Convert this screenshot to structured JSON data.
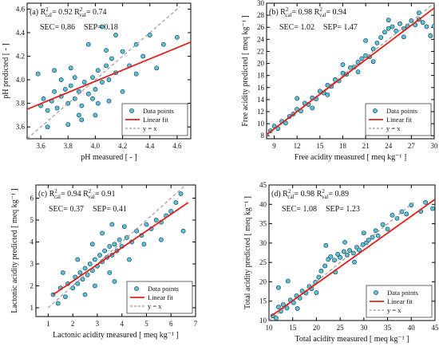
{
  "chart_data": [
    {
      "type": "scatter",
      "panel_label": "(a)",
      "xlabel": "pH measured [ - ]",
      "ylabel": "pH predicted [ - ]",
      "xlim": [
        3.5,
        4.7
      ],
      "ylim": [
        3.5,
        4.65
      ],
      "xticks": [
        "3.6",
        "3.8",
        "4.0",
        "4.2",
        "4.4",
        "4.6"
      ],
      "yticks": [
        "3.6",
        "3.8",
        "4.0",
        "4.2",
        "4.4",
        "4.6"
      ],
      "stats": {
        "r2_cal": "0.92",
        "r2_val": "0.74",
        "sec": "0.86",
        "sep": "0.18"
      },
      "fit_line": {
        "x": [
          3.5,
          4.7
        ],
        "y": [
          3.75,
          4.32
        ]
      },
      "identity_line": {
        "x": [
          3.5,
          4.62
        ],
        "y": [
          3.5,
          4.62
        ]
      },
      "points": [
        [
          3.6,
          3.78
        ],
        [
          3.62,
          3.84
        ],
        [
          3.65,
          3.74
        ],
        [
          3.68,
          3.82
        ],
        [
          3.7,
          3.9
        ],
        [
          3.72,
          3.76
        ],
        [
          3.75,
          3.86
        ],
        [
          3.78,
          3.92
        ],
        [
          3.8,
          3.8
        ],
        [
          3.82,
          3.95
        ],
        [
          3.85,
          3.84
        ],
        [
          3.88,
          3.9
        ],
        [
          3.9,
          3.78
        ],
        [
          3.92,
          3.98
        ],
        [
          3.95,
          3.88
        ],
        [
          3.98,
          4.02
        ],
        [
          4.0,
          3.92
        ],
        [
          4.02,
          4.08
        ],
        [
          4.05,
          3.98
        ],
        [
          4.08,
          4.12
        ],
        [
          4.1,
          4.0
        ],
        [
          4.12,
          4.18
        ],
        [
          4.15,
          4.06
        ],
        [
          4.2,
          4.24
        ],
        [
          4.25,
          4.12
        ],
        [
          4.3,
          4.3
        ],
        [
          4.35,
          4.2
        ],
        [
          4.4,
          4.38
        ],
        [
          4.5,
          4.3
        ],
        [
          4.6,
          4.36
        ],
        [
          3.58,
          4.05
        ],
        [
          3.7,
          4.08
        ],
        [
          3.82,
          4.1
        ],
        [
          3.95,
          4.3
        ],
        [
          4.05,
          4.45
        ],
        [
          4.15,
          4.38
        ],
        [
          3.65,
          3.6
        ],
        [
          3.8,
          3.62
        ],
        [
          3.9,
          3.66
        ],
        [
          4.0,
          3.7
        ],
        [
          4.1,
          3.82
        ],
        [
          4.2,
          3.9
        ],
        [
          4.3,
          4.05
        ],
        [
          4.45,
          4.1
        ],
        [
          3.75,
          4.0
        ],
        [
          3.85,
          4.02
        ],
        [
          3.88,
          3.7
        ],
        [
          3.98,
          3.84
        ],
        [
          4.02,
          3.8
        ],
        [
          4.08,
          4.25
        ]
      ]
    },
    {
      "type": "scatter",
      "panel_label": "(b)",
      "xlabel": "Free acidity measured [ meq kg⁻¹ ]",
      "ylabel": "Free acidity predicted [ meq kg⁻¹ ]",
      "xlim": [
        8,
        30
      ],
      "ylim": [
        7.5,
        30
      ],
      "xticks": [
        "9",
        "12",
        "15",
        "18",
        "21",
        "24",
        "27",
        "30"
      ],
      "yticks": [
        "8",
        "10",
        "12",
        "14",
        "16",
        "18",
        "20",
        "22",
        "24",
        "26",
        "28",
        "30"
      ],
      "stats": {
        "r2_cal": "0.98",
        "r2_val": "0.94",
        "sec": "1.02",
        "sep": "1.47"
      },
      "fit_line": {
        "x": [
          8,
          30
        ],
        "y": [
          8.2,
          29.2
        ]
      },
      "identity_line": {
        "x": [
          8,
          30
        ],
        "y": [
          8,
          30
        ]
      },
      "points": [
        [
          8.5,
          8.8
        ],
        [
          9,
          9.6
        ],
        [
          9.5,
          9.2
        ],
        [
          10,
          10.4
        ],
        [
          10.5,
          10.1
        ],
        [
          11,
          11.2
        ],
        [
          11.5,
          11.6
        ],
        [
          12,
          12.4
        ],
        [
          12.5,
          12.1
        ],
        [
          13,
          13.4
        ],
        [
          13.5,
          13.2
        ],
        [
          14,
          14.3
        ],
        [
          14.5,
          14.1
        ],
        [
          15,
          15.4
        ],
        [
          15.5,
          15.1
        ],
        [
          16,
          16.4
        ],
        [
          16.5,
          16.2
        ],
        [
          17,
          17.3
        ],
        [
          17.5,
          17.1
        ],
        [
          18,
          18.4
        ],
        [
          18.5,
          18.2
        ],
        [
          19,
          19.3
        ],
        [
          19.5,
          19.4
        ],
        [
          20,
          20.2
        ],
        [
          20.5,
          20.8
        ],
        [
          21,
          21.3
        ],
        [
          21.5,
          21.1
        ],
        [
          22,
          22.4
        ],
        [
          22.5,
          23.4
        ],
        [
          23,
          24.3
        ],
        [
          23.5,
          25.2
        ],
        [
          24,
          25.8
        ],
        [
          24.5,
          26.1
        ],
        [
          25,
          25.4
        ],
        [
          25.5,
          26.6
        ],
        [
          26,
          25.8
        ],
        [
          26.5,
          26.2
        ],
        [
          27,
          27.1
        ],
        [
          27.5,
          26.4
        ],
        [
          28,
          27.3
        ],
        [
          28.5,
          26.8
        ],
        [
          29,
          26.1
        ],
        [
          29.5,
          24.6
        ],
        [
          12,
          14.2
        ],
        [
          14,
          12.6
        ],
        [
          16,
          14.8
        ],
        [
          18,
          19.8
        ],
        [
          20,
          18.6
        ],
        [
          22,
          20.3
        ],
        [
          24,
          27.2
        ],
        [
          26,
          24.4
        ],
        [
          28,
          28.4
        ],
        [
          30,
          26.2
        ],
        [
          21,
          23.8
        ]
      ]
    },
    {
      "type": "scatter",
      "panel_label": "(c)",
      "xlabel": "Lactonic acidity measured [ meq kg⁻¹ ]",
      "ylabel": "Lactonic acidity predicted [ meq kg⁻¹ ]",
      "xlim": [
        0.5,
        7
      ],
      "ylim": [
        0.6,
        6.6
      ],
      "xticks": [
        "1",
        "2",
        "3",
        "4",
        "5",
        "6",
        "7"
      ],
      "yticks": [
        "1",
        "2",
        "3",
        "4",
        "5",
        "6"
      ],
      "stats": {
        "r2_cal": "0.94",
        "r2_val": "0.91",
        "sec": "0.37",
        "sep": "0.41"
      },
      "fit_line": {
        "x": [
          1.2,
          6.7
        ],
        "y": [
          1.6,
          5.8
        ]
      },
      "identity_line": {
        "x": [
          1,
          6.6
        ],
        "y": [
          1,
          6.6
        ]
      },
      "points": [
        [
          1.2,
          1.6
        ],
        [
          1.4,
          1.2
        ],
        [
          1.5,
          1.9
        ],
        [
          1.7,
          1.5
        ],
        [
          1.8,
          2.1
        ],
        [
          2,
          1.9
        ],
        [
          2.1,
          2.4
        ],
        [
          2.2,
          2.1
        ],
        [
          2.3,
          2.6
        ],
        [
          2.4,
          2.3
        ],
        [
          2.5,
          2.8
        ],
        [
          2.6,
          2.5
        ],
        [
          2.7,
          3.0
        ],
        [
          2.8,
          2.7
        ],
        [
          2.9,
          3.2
        ],
        [
          3,
          2.9
        ],
        [
          3.1,
          3.4
        ],
        [
          3.2,
          3.1
        ],
        [
          3.3,
          3.6
        ],
        [
          3.4,
          3.3
        ],
        [
          3.5,
          3.8
        ],
        [
          3.6,
          3.4
        ],
        [
          3.7,
          3.9
        ],
        [
          3.8,
          3.6
        ],
        [
          3.9,
          4.1
        ],
        [
          4,
          3.8
        ],
        [
          4.2,
          4.2
        ],
        [
          4.4,
          4.0
        ],
        [
          4.6,
          4.5
        ],
        [
          4.8,
          4.3
        ],
        [
          5,
          4.8
        ],
        [
          5.2,
          4.6
        ],
        [
          5.4,
          5.0
        ],
        [
          5.6,
          4.9
        ],
        [
          5.8,
          5.2
        ],
        [
          6,
          5.4
        ],
        [
          6.2,
          5.8
        ],
        [
          6.4,
          6.2
        ],
        [
          6.5,
          4.5
        ],
        [
          1.6,
          2.6
        ],
        [
          2.2,
          3.2
        ],
        [
          2.8,
          3.9
        ],
        [
          3.2,
          4.4
        ],
        [
          3.6,
          4.8
        ],
        [
          4.1,
          4.7
        ],
        [
          2.9,
          2.0
        ],
        [
          3.5,
          2.6
        ],
        [
          4.3,
          3.2
        ],
        [
          4.9,
          3.9
        ],
        [
          5.6,
          4.1
        ],
        [
          3.7,
          2.2
        ],
        [
          2.5,
          1.6
        ]
      ]
    },
    {
      "type": "scatter",
      "panel_label": "(d)",
      "xlabel": "Total acidity measured [ meq kg⁻¹ ]",
      "ylabel": "Total acidity predicted [ meq kg⁻¹ ]",
      "xlim": [
        10,
        45
      ],
      "ylim": [
        10,
        45
      ],
      "xticks": [
        "10",
        "15",
        "20",
        "25",
        "30",
        "35",
        "40",
        "45"
      ],
      "yticks": [
        "10",
        "15",
        "20",
        "25",
        "30",
        "35",
        "40",
        "45"
      ],
      "stats": {
        "r2_cal": "0.98",
        "r2_val": "0.89",
        "sec": "1.08",
        "sep": "1.23"
      },
      "fit_line": {
        "x": [
          10.5,
          45
        ],
        "y": [
          11.2,
          41.3
        ]
      },
      "identity_line": {
        "x": [
          10,
          40.5
        ],
        "y": [
          10,
          40.5
        ]
      },
      "points": [
        [
          10.8,
          11.2
        ],
        [
          11.5,
          10.6
        ],
        [
          12,
          13.5
        ],
        [
          12.5,
          12.4
        ],
        [
          13,
          14.1
        ],
        [
          13.8,
          13.2
        ],
        [
          14.5,
          15.3
        ],
        [
          15.2,
          14.6
        ],
        [
          15.8,
          16.4
        ],
        [
          16.5,
          15.8
        ],
        [
          17,
          17.6
        ],
        [
          17.8,
          17.1
        ],
        [
          18.5,
          18.8
        ],
        [
          19,
          18.2
        ],
        [
          19.8,
          19.9
        ],
        [
          20.5,
          21.2
        ],
        [
          21,
          22.8
        ],
        [
          21.8,
          24.1
        ],
        [
          22.5,
          25.8
        ],
        [
          23,
          26.5
        ],
        [
          23.8,
          25.6
        ],
        [
          24.5,
          27.1
        ],
        [
          25,
          26.3
        ],
        [
          25.8,
          27.8
        ],
        [
          26.5,
          26.9
        ],
        [
          27,
          28.1
        ],
        [
          27.8,
          27.4
        ],
        [
          28.5,
          28.9
        ],
        [
          29,
          28.2
        ],
        [
          29.8,
          29.6
        ],
        [
          30.5,
          30.1
        ],
        [
          31,
          30.8
        ],
        [
          31.8,
          31.5
        ],
        [
          32.5,
          33.2
        ],
        [
          33,
          31.9
        ],
        [
          34,
          34.8
        ],
        [
          35,
          33.6
        ],
        [
          36,
          37.2
        ],
        [
          37,
          36.4
        ],
        [
          38,
          38.1
        ],
        [
          39,
          37.5
        ],
        [
          40,
          39.8
        ],
        [
          42,
          38.2
        ],
        [
          43,
          40.5
        ],
        [
          44.5,
          38.9
        ],
        [
          12,
          18.5
        ],
        [
          14,
          20.2
        ],
        [
          16,
          13.1
        ],
        [
          20,
          17.2
        ],
        [
          24,
          22.5
        ],
        [
          28,
          25.1
        ],
        [
          30,
          32.6
        ],
        [
          22,
          29.4
        ],
        [
          26,
          30.2
        ]
      ]
    }
  ],
  "legend": {
    "data_points": "Data points",
    "linear_fit": "Linear fit",
    "identity": "y = x"
  },
  "colors": {
    "marker_fill": "#5bc3d6",
    "marker_stroke": "#0b2e4a",
    "fit_line": "#e0201c",
    "identity_line": "#9a9a9a",
    "axis": "#000000"
  }
}
